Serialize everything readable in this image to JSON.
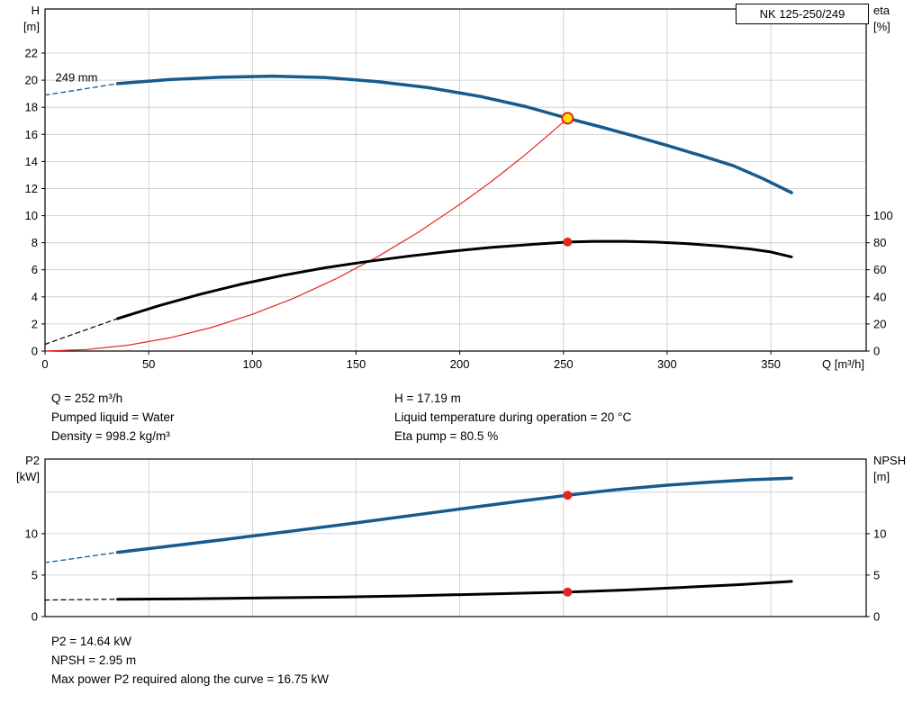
{
  "title_box": {
    "label": "NK 125-250/249"
  },
  "info_top": {
    "col1": [
      "Q = 252 m³/h",
      "Pumped liquid = Water",
      "Density = 998.2 kg/m³"
    ],
    "col2": [
      "H = 17.19 m",
      "Liquid temperature during operation = 20 °C",
      "Eta pump = 80.5 %"
    ]
  },
  "info_bottom": [
    "P2 = 14.64 kW",
    "NPSH = 2.95 m",
    "Max power P2 required along the curve = 16.75 kW"
  ],
  "colors": {
    "curve_blue": "#175a8c",
    "curve_black": "#000000",
    "curve_red": "#e42620",
    "duty_point_fill": "#ffdf00",
    "grid": "#c9c9c9"
  },
  "chart_data": [
    {
      "id": "qh_eta",
      "type": "line",
      "title": "QH and efficiency curves for NK 125-250/249",
      "x": {
        "label": "Q [m³/h]",
        "min": 0,
        "max": 396,
        "ticks": [
          0,
          50,
          100,
          150,
          200,
          250,
          300,
          350
        ],
        "show_labels": true
      },
      "y_left": {
        "label": "H",
        "unit": "[m]",
        "min": 0,
        "max": 25.26,
        "ticks": [
          0,
          2,
          4,
          6,
          8,
          10,
          12,
          14,
          16,
          18,
          20,
          22
        ],
        "grid": [
          2,
          4,
          6,
          8,
          10,
          12,
          14,
          16,
          18,
          20,
          22
        ]
      },
      "y_right": {
        "label": "eta",
        "unit": "[%]",
        "min": 0,
        "max": 252.6,
        "ticks": [
          0,
          20,
          40,
          60,
          80,
          100
        ]
      },
      "annotation": {
        "text": "249 mm",
        "q": 5,
        "h": 19.9
      },
      "series": [
        {
          "name": "system-curve",
          "axis": "left",
          "color": "#e42620",
          "width": 1.2,
          "points": [
            [
              0,
              0
            ],
            [
              20,
              0.11
            ],
            [
              40,
              0.43
            ],
            [
              60,
              0.97
            ],
            [
              80,
              1.73
            ],
            [
              100,
              2.71
            ],
            [
              120,
              3.9
            ],
            [
              140,
              5.31
            ],
            [
              160,
              6.93
            ],
            [
              180,
              8.77
            ],
            [
              200,
              10.83
            ],
            [
              215,
              12.49
            ],
            [
              230,
              14.3
            ],
            [
              242,
              15.85
            ],
            [
              252,
              17.19
            ]
          ]
        },
        {
          "name": "head-curve-extension",
          "axis": "left",
          "color": "#175a8c",
          "width": 1.3,
          "dash": "5 4",
          "points": [
            [
              0,
              18.9
            ],
            [
              35,
              19.75
            ]
          ]
        },
        {
          "name": "eta-curve-extension",
          "axis": "right",
          "color": "#000000",
          "width": 1.2,
          "dash": "5 4",
          "points": [
            [
              0,
              5
            ],
            [
              35,
              24
            ]
          ]
        },
        {
          "name": "eta-curve",
          "axis": "right",
          "color": "#000000",
          "width": 3,
          "points": [
            [
              35,
              24
            ],
            [
              55,
              33.5
            ],
            [
              75,
              42
            ],
            [
              95,
              49.5
            ],
            [
              115,
              56
            ],
            [
              135,
              61.5
            ],
            [
              155,
              66
            ],
            [
              175,
              70
            ],
            [
              195,
              73.5
            ],
            [
              215,
              76.5
            ],
            [
              235,
              78.8
            ],
            [
              252,
              80.5
            ],
            [
              265,
              81
            ],
            [
              280,
              81
            ],
            [
              295,
              80.4
            ],
            [
              310,
              79.3
            ],
            [
              325,
              77.6
            ],
            [
              340,
              75.4
            ],
            [
              350,
              73.2
            ],
            [
              360,
              69.5
            ]
          ]
        },
        {
          "name": "head-curve",
          "axis": "left",
          "color": "#175a8c",
          "width": 3.5,
          "points": [
            [
              35,
              19.75
            ],
            [
              60,
              20.05
            ],
            [
              85,
              20.22
            ],
            [
              110,
              20.3
            ],
            [
              135,
              20.2
            ],
            [
              160,
              19.9
            ],
            [
              185,
              19.45
            ],
            [
              210,
              18.8
            ],
            [
              232,
              18.05
            ],
            [
              252,
              17.19
            ],
            [
              268,
              16.55
            ],
            [
              284,
              15.88
            ],
            [
              300,
              15.18
            ],
            [
              316,
              14.45
            ],
            [
              332,
              13.68
            ],
            [
              346,
              12.75
            ],
            [
              360,
              11.7
            ]
          ]
        }
      ],
      "markers": [
        {
          "name": "duty-point",
          "axis": "left",
          "x": 252,
          "y": 17.19,
          "r": 6,
          "fill": "#ffdf00",
          "stroke": "#e42620",
          "stroke_width": 2
        },
        {
          "name": "eta-point",
          "axis": "right",
          "x": 252,
          "y": 80.5,
          "r": 5,
          "fill": "#e42620"
        }
      ]
    },
    {
      "id": "p2_npsh",
      "type": "line",
      "title": "P2 and NPSH curves",
      "x": {
        "label": "",
        "min": 0,
        "max": 396,
        "ticks": [
          50,
          100,
          150,
          200,
          250,
          300,
          350
        ],
        "show_labels": false
      },
      "y_left": {
        "label": "P2",
        "unit": "[kW]",
        "min": 0,
        "max": 19,
        "ticks": [
          0,
          5,
          10
        ],
        "grid": [
          5,
          10,
          15
        ]
      },
      "y_right": {
        "label": "NPSH",
        "unit": "[m]",
        "min": 0,
        "max": 19,
        "ticks": [
          0,
          5,
          10
        ]
      },
      "series": [
        {
          "name": "p2-curve-extension",
          "axis": "left",
          "color": "#175a8c",
          "width": 1.3,
          "dash": "5 4",
          "points": [
            [
              0,
              6.5
            ],
            [
              35,
              7.75
            ]
          ]
        },
        {
          "name": "npsh-curve-extension",
          "axis": "left",
          "color": "#000000",
          "width": 1.2,
          "dash": "5 4",
          "points": [
            [
              0,
              2.0
            ],
            [
              35,
              2.1
            ]
          ]
        },
        {
          "name": "npsh-curve",
          "axis": "left",
          "color": "#000000",
          "width": 3,
          "points": [
            [
              35,
              2.1
            ],
            [
              70,
              2.15
            ],
            [
              105,
              2.25
            ],
            [
              140,
              2.35
            ],
            [
              175,
              2.5
            ],
            [
              210,
              2.7
            ],
            [
              252,
              2.95
            ],
            [
              280,
              3.2
            ],
            [
              310,
              3.55
            ],
            [
              335,
              3.85
            ],
            [
              360,
              4.25
            ]
          ]
        },
        {
          "name": "p2-curve",
          "axis": "left",
          "color": "#175a8c",
          "width": 3.5,
          "points": [
            [
              35,
              7.75
            ],
            [
              60,
              8.5
            ],
            [
              90,
              9.4
            ],
            [
              120,
              10.35
            ],
            [
              150,
              11.3
            ],
            [
              180,
              12.3
            ],
            [
              210,
              13.3
            ],
            [
              230,
              13.95
            ],
            [
              252,
              14.64
            ],
            [
              275,
              15.3
            ],
            [
              300,
              15.85
            ],
            [
              320,
              16.2
            ],
            [
              340,
              16.5
            ],
            [
              360,
              16.7
            ]
          ]
        }
      ],
      "markers": [
        {
          "name": "p2-point",
          "axis": "left",
          "x": 252,
          "y": 14.64,
          "r": 5,
          "fill": "#e42620"
        },
        {
          "name": "npsh-point",
          "axis": "left",
          "x": 252,
          "y": 2.95,
          "r": 5,
          "fill": "#e42620"
        }
      ]
    }
  ]
}
